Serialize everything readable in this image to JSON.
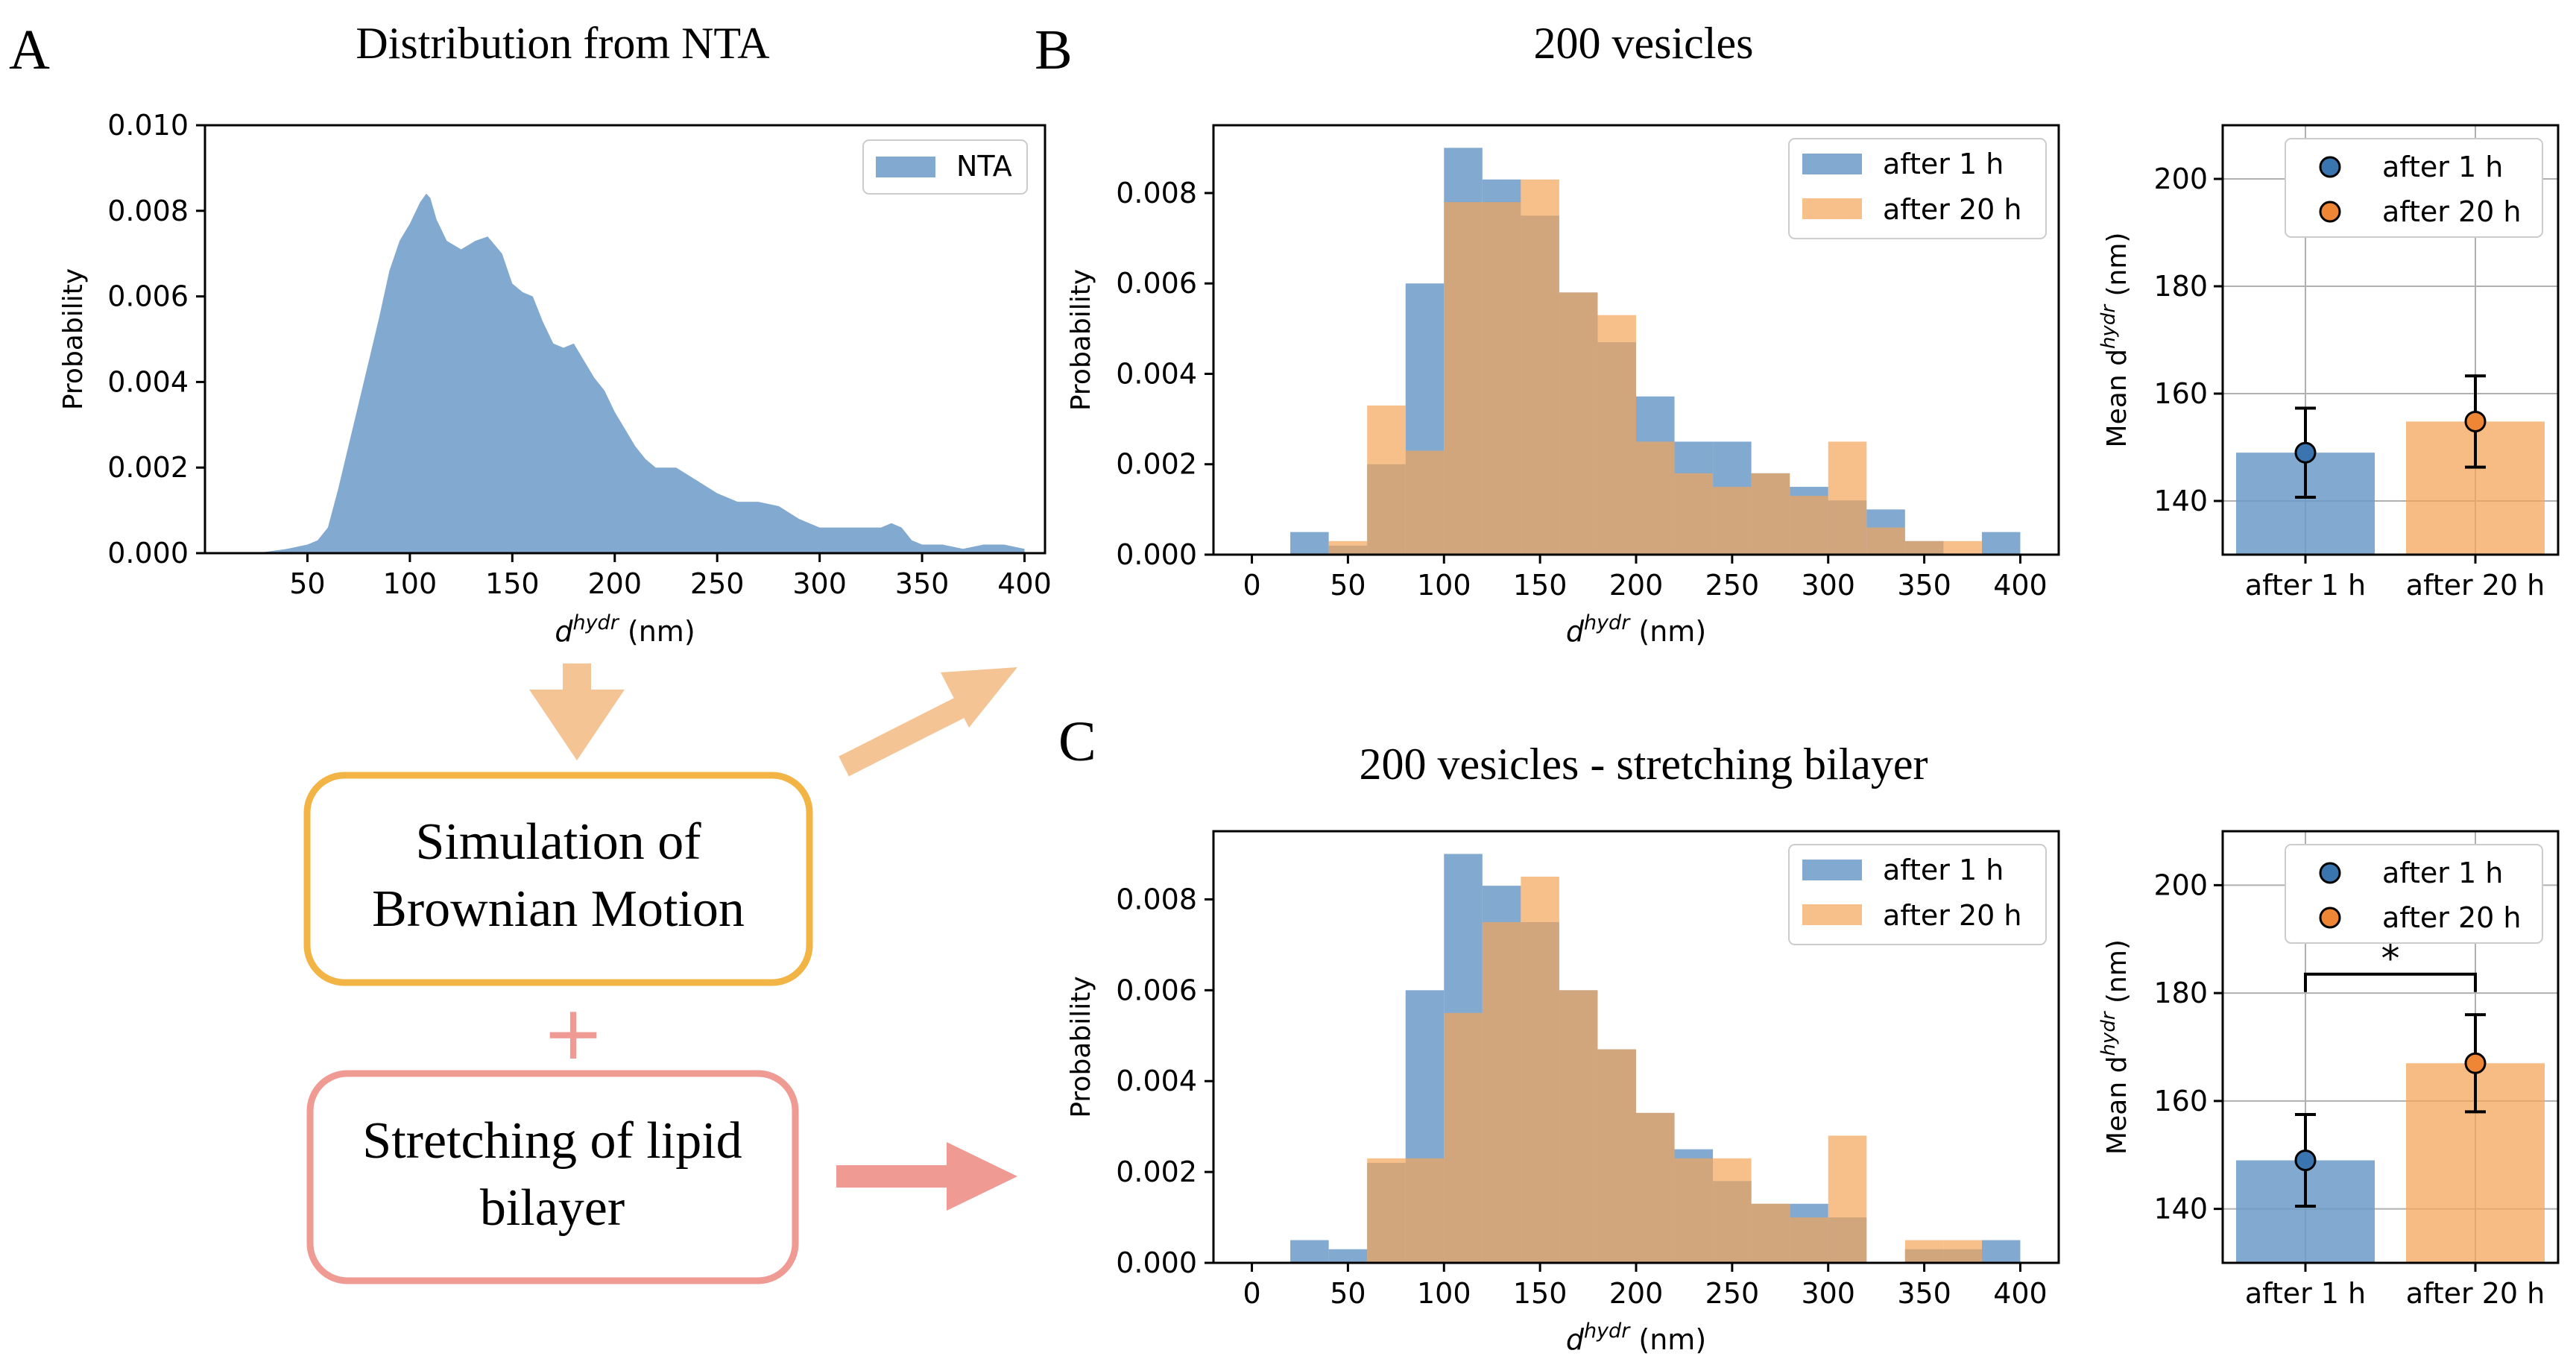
{
  "panel_letters": {
    "a": "A",
    "b": "B",
    "c": "C"
  },
  "colors": {
    "blue": "#6c9ac8",
    "orange": "#f4a55a",
    "blue_point": "#3b75af",
    "orange_point": "#ef8636",
    "flow_orange": "#f5c495",
    "sim_box": "#f2b444",
    "stretch_box": "#ef9a93",
    "plus": "#ef9a93",
    "stretch_arrow": "#ef9a93"
  },
  "flow": {
    "sim_line1": "Simulation of",
    "sim_line2": "Brownian Motion",
    "plus": "+",
    "stretch_line1": "Stretching of lipid",
    "stretch_line2": "bilayer"
  },
  "chart_data": [
    {
      "id": "A",
      "type": "bar",
      "title": "Distribution from NTA",
      "xlabel_main": "d",
      "xlabel_sup": "hydr",
      "xlabel_unit": " (nm)",
      "ylabel": "Probability",
      "xlim": [
        0,
        410
      ],
      "ylim": [
        0,
        0.01
      ],
      "xticks": [
        50,
        100,
        150,
        200,
        250,
        300,
        350,
        400
      ],
      "yticks": [
        0.0,
        0.002,
        0.004,
        0.006,
        0.008,
        0.01
      ],
      "ytick_labels": [
        "0.000",
        "0.002",
        "0.004",
        "0.006",
        "0.008",
        "0.010"
      ],
      "legend": [
        "NTA"
      ],
      "x": [
        25,
        40,
        50,
        55,
        60,
        65,
        70,
        75,
        80,
        85,
        90,
        95,
        100,
        105,
        108,
        110,
        113,
        118,
        125,
        132,
        138,
        145,
        150,
        155,
        160,
        165,
        170,
        175,
        180,
        185,
        190,
        195,
        200,
        205,
        210,
        215,
        220,
        225,
        230,
        240,
        250,
        260,
        270,
        280,
        290,
        300,
        310,
        320,
        330,
        335,
        340,
        345,
        350,
        360,
        370,
        380,
        390,
        400
      ],
      "values": [
        0.0,
        0.0001,
        0.0002,
        0.0003,
        0.0006,
        0.0015,
        0.0025,
        0.0035,
        0.0045,
        0.0055,
        0.0066,
        0.0073,
        0.0077,
        0.0082,
        0.0084,
        0.0083,
        0.0078,
        0.0073,
        0.0071,
        0.0073,
        0.0074,
        0.007,
        0.0063,
        0.0061,
        0.006,
        0.0054,
        0.0049,
        0.0048,
        0.0049,
        0.0045,
        0.0041,
        0.0038,
        0.0033,
        0.0029,
        0.0025,
        0.0022,
        0.002,
        0.002,
        0.002,
        0.0017,
        0.0014,
        0.0012,
        0.0012,
        0.0011,
        0.0008,
        0.0006,
        0.0006,
        0.0006,
        0.0006,
        0.0007,
        0.0006,
        0.0003,
        0.0002,
        0.0002,
        0.0001,
        0.0002,
        0.0002,
        0.0001
      ]
    },
    {
      "id": "B",
      "type": "bar",
      "title": "200 vesicles",
      "xlabel_main": "d",
      "xlabel_sup": "hydr",
      "xlabel_unit": " (nm)",
      "ylabel": "Probability",
      "xlim": [
        -20,
        420
      ],
      "ylim": [
        0,
        0.0095
      ],
      "xticks": [
        0,
        50,
        100,
        150,
        200,
        250,
        300,
        350,
        400
      ],
      "yticks": [
        0.0,
        0.002,
        0.004,
        0.006,
        0.008
      ],
      "ytick_labels": [
        "0.000",
        "0.002",
        "0.004",
        "0.006",
        "0.008"
      ],
      "legend": [
        "after 1 h",
        "after 20 h"
      ],
      "bin_edges": [
        20,
        40,
        60,
        80,
        100,
        120,
        140,
        160,
        180,
        200,
        220,
        240,
        260,
        280,
        300,
        320,
        340,
        360,
        380,
        400
      ],
      "series": [
        {
          "name": "after 1 h",
          "values": [
            0.0005,
            0.0002,
            0.002,
            0.006,
            0.009,
            0.0083,
            0.0075,
            0.0058,
            0.0047,
            0.0035,
            0.0025,
            0.0025,
            0.0018,
            0.0015,
            0.0012,
            0.001,
            0.0003,
            0.0,
            0.0005
          ]
        },
        {
          "name": "after 20 h",
          "values": [
            0.0,
            0.0003,
            0.0033,
            0.0023,
            0.0078,
            0.0078,
            0.0083,
            0.0058,
            0.0053,
            0.0025,
            0.0018,
            0.0015,
            0.0018,
            0.0013,
            0.0025,
            0.0006,
            0.0003,
            0.0003,
            0.0
          ]
        }
      ]
    },
    {
      "id": "B-mean",
      "type": "bar",
      "ylabel_main": "Mean d",
      "ylabel_sup": "hydr",
      "ylabel_unit": " (nm)",
      "categories": [
        "after 1 h",
        "after 20 h"
      ],
      "values": [
        149,
        154.8
      ],
      "errors": [
        8.3,
        8.5
      ],
      "ylim": [
        130,
        210
      ],
      "yticks": [
        140,
        160,
        180,
        200
      ],
      "legend": [
        "after 1 h",
        "after 20 h"
      ],
      "annotation": ""
    },
    {
      "id": "C",
      "type": "bar",
      "title": "200 vesicles - stretching bilayer",
      "xlabel_main": "d",
      "xlabel_sup": "hydr",
      "xlabel_unit": " (nm)",
      "ylabel": "Probability",
      "xlim": [
        -20,
        420
      ],
      "ylim": [
        0,
        0.0095
      ],
      "xticks": [
        0,
        50,
        100,
        150,
        200,
        250,
        300,
        350,
        400
      ],
      "yticks": [
        0.0,
        0.002,
        0.004,
        0.006,
        0.008
      ],
      "ytick_labels": [
        "0.000",
        "0.002",
        "0.004",
        "0.006",
        "0.008"
      ],
      "legend": [
        "after 1 h",
        "after 20 h"
      ],
      "bin_edges": [
        20,
        40,
        60,
        80,
        100,
        120,
        140,
        160,
        180,
        200,
        220,
        240,
        260,
        280,
        300,
        320,
        340,
        360,
        380,
        400
      ],
      "series": [
        {
          "name": "after 1 h",
          "values": [
            0.0005,
            0.0003,
            0.0022,
            0.006,
            0.009,
            0.0083,
            0.0075,
            0.006,
            0.0047,
            0.0033,
            0.0025,
            0.0018,
            0.0013,
            0.0013,
            0.001,
            0.0,
            0.0003,
            0.0003,
            0.0005
          ]
        },
        {
          "name": "after 20 h",
          "values": [
            0.0,
            0.0,
            0.0023,
            0.0023,
            0.0055,
            0.0075,
            0.0085,
            0.006,
            0.0047,
            0.0033,
            0.0023,
            0.0023,
            0.0013,
            0.001,
            0.0028,
            0.0,
            0.0005,
            0.0005,
            0.0
          ]
        }
      ]
    },
    {
      "id": "C-mean",
      "type": "bar",
      "ylabel_main": "Mean d",
      "ylabel_sup": "hydr",
      "ylabel_unit": " (nm)",
      "categories": [
        "after 1 h",
        "after 20 h"
      ],
      "values": [
        149,
        167
      ],
      "errors": [
        8.5,
        9
      ],
      "ylim": [
        130,
        210
      ],
      "yticks": [
        140,
        160,
        180,
        200
      ],
      "legend": [
        "after 1 h",
        "after 20 h"
      ],
      "annotation": "*"
    }
  ]
}
